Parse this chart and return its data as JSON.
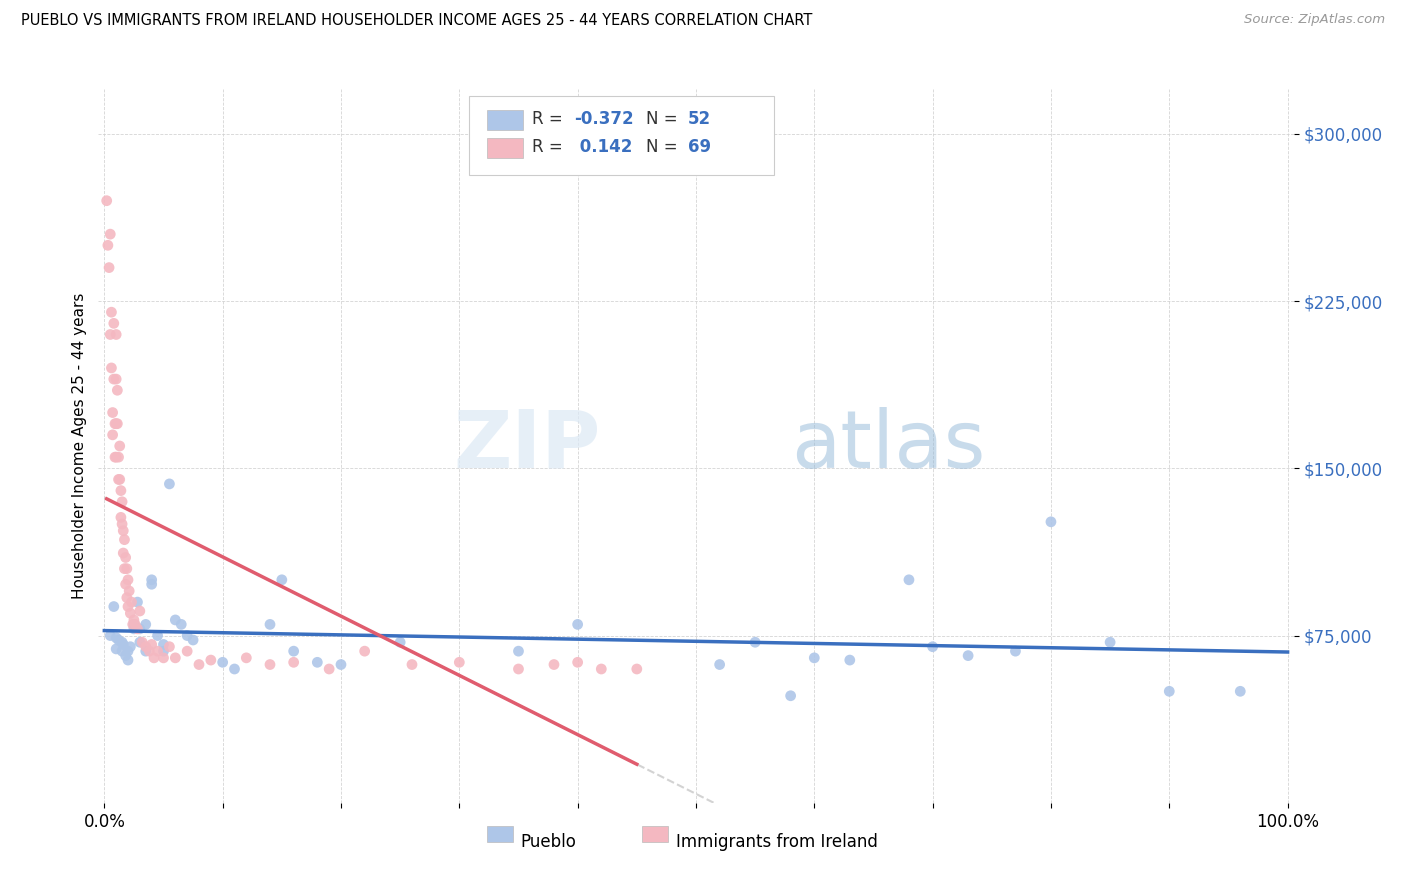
{
  "title": "PUEBLO VS IMMIGRANTS FROM IRELAND HOUSEHOLDER INCOME AGES 25 - 44 YEARS CORRELATION CHART",
  "source": "Source: ZipAtlas.com",
  "ylabel": "Householder Income Ages 25 - 44 years",
  "ytick_labels": [
    "$75,000",
    "$150,000",
    "$225,000",
    "$300,000"
  ],
  "ytick_values": [
    75000,
    150000,
    225000,
    300000
  ],
  "ymin": 0,
  "ymax": 320000,
  "xmin": 0.0,
  "xmax": 1.0,
  "legend_labels": [
    "Pueblo",
    "Immigrants from Ireland"
  ],
  "pueblo_R": "-0.372",
  "pueblo_N": "52",
  "ireland_R": "0.142",
  "ireland_N": "69",
  "pueblo_color": "#aec6e8",
  "ireland_color": "#f4b8c1",
  "pueblo_line_color": "#3a6fbf",
  "ireland_line_color": "#e05c6e",
  "background_color": "#ffffff",
  "watermark_zip": "ZIP",
  "watermark_atlas": "atlas",
  "pueblo_scatter_x": [
    0.005,
    0.008,
    0.01,
    0.01,
    0.012,
    0.015,
    0.015,
    0.016,
    0.018,
    0.02,
    0.02,
    0.022,
    0.025,
    0.025,
    0.028,
    0.03,
    0.03,
    0.035,
    0.035,
    0.04,
    0.04,
    0.045,
    0.05,
    0.05,
    0.055,
    0.06,
    0.065,
    0.07,
    0.075,
    0.1,
    0.11,
    0.14,
    0.15,
    0.16,
    0.18,
    0.2,
    0.25,
    0.35,
    0.4,
    0.52,
    0.55,
    0.58,
    0.6,
    0.63,
    0.68,
    0.7,
    0.73,
    0.77,
    0.8,
    0.85,
    0.9,
    0.96
  ],
  "pueblo_scatter_y": [
    75000,
    88000,
    69000,
    74000,
    73000,
    72000,
    68000,
    71000,
    66000,
    64000,
    68000,
    70000,
    78000,
    80000,
    90000,
    78000,
    72000,
    80000,
    68000,
    100000,
    98000,
    75000,
    68000,
    71000,
    143000,
    82000,
    80000,
    75000,
    73000,
    63000,
    60000,
    80000,
    100000,
    68000,
    63000,
    62000,
    72000,
    68000,
    80000,
    62000,
    72000,
    48000,
    65000,
    64000,
    100000,
    70000,
    66000,
    68000,
    126000,
    72000,
    50000,
    50000
  ],
  "ireland_scatter_x": [
    0.002,
    0.003,
    0.004,
    0.005,
    0.005,
    0.006,
    0.006,
    0.007,
    0.007,
    0.008,
    0.008,
    0.009,
    0.009,
    0.01,
    0.01,
    0.01,
    0.01,
    0.011,
    0.011,
    0.012,
    0.012,
    0.013,
    0.013,
    0.014,
    0.014,
    0.015,
    0.015,
    0.016,
    0.016,
    0.017,
    0.017,
    0.018,
    0.018,
    0.019,
    0.019,
    0.02,
    0.02,
    0.021,
    0.022,
    0.023,
    0.024,
    0.025,
    0.026,
    0.028,
    0.03,
    0.032,
    0.035,
    0.038,
    0.04,
    0.042,
    0.045,
    0.05,
    0.055,
    0.06,
    0.07,
    0.08,
    0.09,
    0.12,
    0.14,
    0.16,
    0.19,
    0.22,
    0.26,
    0.3,
    0.35,
    0.38,
    0.4,
    0.42,
    0.45
  ],
  "ireland_scatter_y": [
    270000,
    250000,
    240000,
    255000,
    210000,
    220000,
    195000,
    175000,
    165000,
    215000,
    190000,
    170000,
    155000,
    210000,
    190000,
    170000,
    155000,
    185000,
    170000,
    155000,
    145000,
    160000,
    145000,
    140000,
    128000,
    135000,
    125000,
    122000,
    112000,
    118000,
    105000,
    110000,
    98000,
    105000,
    92000,
    100000,
    88000,
    95000,
    85000,
    90000,
    80000,
    82000,
    80000,
    78000,
    86000,
    72000,
    70000,
    68000,
    71000,
    65000,
    68000,
    65000,
    70000,
    65000,
    68000,
    62000,
    64000,
    65000,
    62000,
    63000,
    60000,
    68000,
    62000,
    63000,
    60000,
    62000,
    63000,
    60000,
    60000
  ]
}
